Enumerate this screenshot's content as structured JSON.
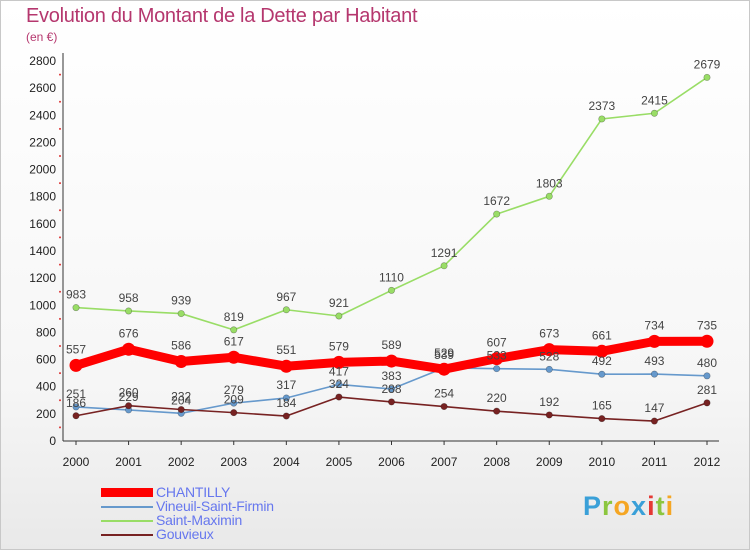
{
  "chart_data": {
    "type": "line",
    "title": "Evolution du Montant de la Dette par Habitant",
    "subtitle": "(en €)",
    "x": [
      "2000",
      "2001",
      "2002",
      "2003",
      "2004",
      "2005",
      "2006",
      "2007",
      "2008",
      "2009",
      "2010",
      "2011",
      "2012"
    ],
    "ylim": [
      0,
      2800
    ],
    "yticks": [
      0,
      200,
      400,
      600,
      800,
      1000,
      1200,
      1400,
      1600,
      1800,
      2000,
      2200,
      2400,
      2600,
      2800
    ],
    "grid": false,
    "legend_position": "bottom-left",
    "series": [
      {
        "name": "CHANTILLY",
        "color": "#ff0000",
        "values": [
          557,
          676,
          586,
          617,
          551,
          579,
          589,
          529,
          607,
          673,
          661,
          734,
          735
        ]
      },
      {
        "name": "Vineuil-Saint-Firmin",
        "color": "#6699cc",
        "values": [
          251,
          229,
          204,
          279,
          317,
          417,
          383,
          539,
          533,
          528,
          492,
          493,
          480
        ]
      },
      {
        "name": "Saint-Maximin",
        "color": "#99dd66",
        "values": [
          983,
          958,
          939,
          819,
          967,
          921,
          1110,
          1291,
          1672,
          1803,
          2373,
          2415,
          2679
        ]
      },
      {
        "name": "Gouvieux",
        "color": "#772222",
        "values": [
          186,
          260,
          232,
          209,
          184,
          324,
          288,
          254,
          220,
          192,
          165,
          147,
          281
        ]
      }
    ]
  },
  "logo": {
    "letters": [
      "P",
      "r",
      "o",
      "x",
      "i",
      "t",
      "i"
    ]
  }
}
